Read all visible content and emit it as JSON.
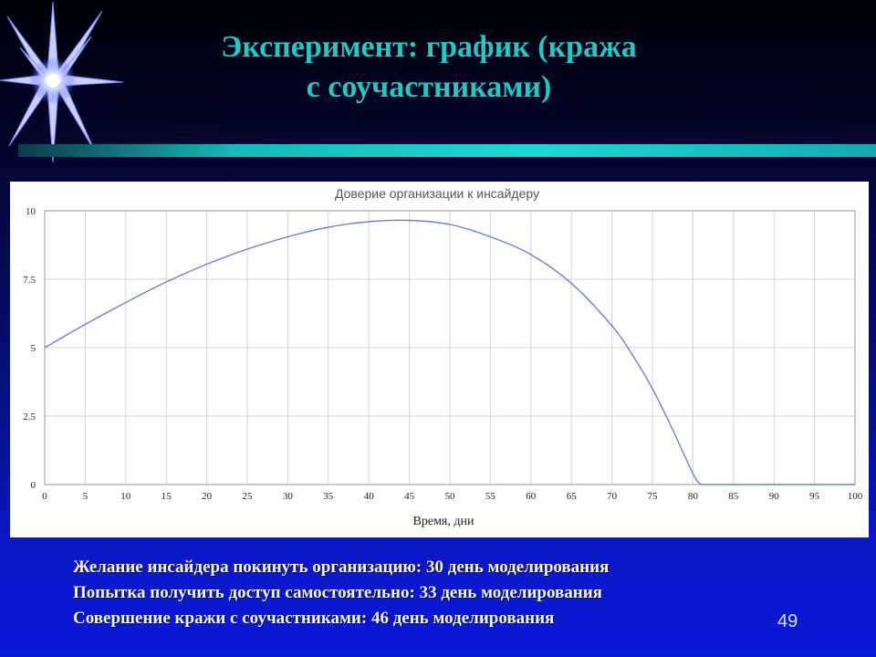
{
  "slide": {
    "title_line1": "Эксперимент: график (кража",
    "title_line2": "с соучастниками)",
    "notes": [
      "Желание инсайдера покинуть организацию: 30 день моделирования",
      "Попытка получить доступ самостоятельно: 33 день моделирования",
      "Совершение кражи с соучастниками: 46 день моделирования"
    ],
    "page_number": "49"
  },
  "colors": {
    "title": "#26c6c6",
    "line": "#6f7fcf",
    "grid": "#d4d4d4",
    "notes_text": "#f4f4f4"
  },
  "chart_data": {
    "type": "line",
    "title": "Доверие организации к инсайдеру",
    "xlabel": "Время, дни",
    "ylabel": "",
    "xlim": [
      0,
      100
    ],
    "ylim": [
      0,
      10
    ],
    "x_ticks": [
      "0",
      "5",
      "10",
      "15",
      "20",
      "25",
      "30",
      "35",
      "40",
      "45",
      "50",
      "55",
      "60",
      "65",
      "70",
      "75",
      "80",
      "85",
      "90",
      "95",
      "100"
    ],
    "y_ticks": [
      "0",
      "2.5",
      "5",
      "7.5",
      "10"
    ],
    "grid": true,
    "legend": "none",
    "series": [
      {
        "x": [
          0,
          5,
          10,
          15,
          20,
          25,
          30,
          35,
          40,
          45,
          50,
          55,
          60,
          65,
          70,
          72.5,
          75,
          77.5,
          80,
          81,
          82,
          85,
          90,
          95,
          100
        ],
        "y": [
          5.0,
          5.85,
          6.65,
          7.4,
          8.05,
          8.6,
          9.05,
          9.4,
          9.6,
          9.65,
          9.5,
          9.05,
          8.4,
          7.35,
          5.8,
          4.75,
          3.5,
          2.0,
          0.4,
          0.0,
          0.0,
          0.0,
          0.0,
          0.0,
          0.0
        ]
      }
    ]
  }
}
